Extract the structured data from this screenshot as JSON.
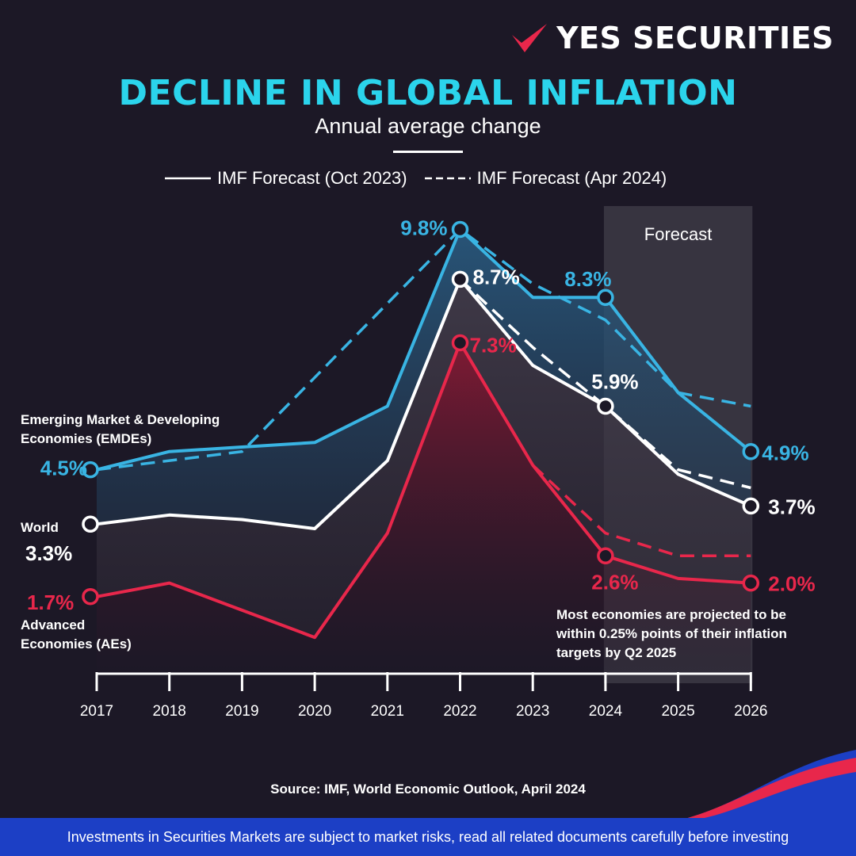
{
  "brand": {
    "name": "YES SECURITIES",
    "colors": {
      "emdes": "#39b4e3",
      "world": "#ffffff",
      "aes": "#e8274b",
      "title": "#2bd4ec",
      "footer": "#1c3fc5",
      "background": "#1c1826"
    }
  },
  "header": {
    "title": "DECLINE IN GLOBAL INFLATION",
    "subtitle": "Annual average change"
  },
  "legend": {
    "solid_label": "IMF Forecast (Oct 2023)",
    "dashed_label": "IMF Forecast (Apr 2024)"
  },
  "chart_data": {
    "type": "line",
    "title": "DECLINE IN GLOBAL INFLATION",
    "subtitle": "Annual average change",
    "x": [
      "2017",
      "2018",
      "2019",
      "2020",
      "2021",
      "2022",
      "2023",
      "2024",
      "2025",
      "2026"
    ],
    "ylim": [
      0,
      10.5
    ],
    "forecast_band": {
      "label": "Forecast",
      "from": "2024",
      "to": "2026"
    },
    "series": [
      {
        "name": "Emerging Market & Developing Economies (EMDEs)",
        "key": "emdes",
        "values": [
          4.5,
          4.9,
          5.0,
          5.1,
          5.9,
          9.8,
          8.3,
          8.3,
          6.2,
          4.9
        ],
        "forecast_apr_2024": {
          "x": [
            "2017",
            "2019",
            "2022",
            "2023",
            "2024",
            "2025",
            "2026"
          ],
          "values": [
            4.5,
            4.9,
            9.8,
            8.6,
            7.8,
            6.2,
            5.9
          ]
        },
        "labels": {
          "2017": "4.5%",
          "2022": "9.8%",
          "2024": "8.3%",
          "2026": "4.9%"
        }
      },
      {
        "name": "World",
        "key": "world",
        "values": [
          3.3,
          3.5,
          3.4,
          3.2,
          4.7,
          8.7,
          6.8,
          5.9,
          4.4,
          3.7
        ],
        "forecast_apr_2024": {
          "x": [
            "2022",
            "2023",
            "2024",
            "2025",
            "2026"
          ],
          "values": [
            8.7,
            7.2,
            5.9,
            4.5,
            4.1
          ]
        },
        "labels": {
          "2017": "3.3%",
          "2022": "8.7%",
          "2024": "5.9%",
          "2026": "3.7%"
        }
      },
      {
        "name": "Advanced Economies (AEs)",
        "key": "aes",
        "values": [
          1.7,
          2.0,
          1.4,
          0.8,
          3.1,
          7.3,
          4.6,
          2.6,
          2.1,
          2.0
        ],
        "forecast_apr_2024": {
          "x": [
            "2023",
            "2024",
            "2025",
            "2026"
          ],
          "values": [
            4.6,
            3.1,
            2.6,
            2.6
          ]
        },
        "labels": {
          "2017": "1.7%",
          "2022": "7.3%",
          "2024": "2.6%",
          "2026": "2.0%"
        }
      }
    ],
    "annotations": {
      "emdes_label": [
        "Emerging Market & Developing",
        "Economies (EMDEs)"
      ],
      "world_label": "World",
      "aes_label": [
        "Advanced",
        "Economies (AEs)"
      ],
      "note": [
        "Most economies are projected to be",
        "within 0.25% points of their inflation",
        "targets by Q2 2025"
      ]
    }
  },
  "footer": {
    "source": "Source: IMF, World Economic Outlook, April 2024",
    "disclaimer": "Investments in Securities Markets are subject to market risks, read all related documents carefully before investing"
  }
}
